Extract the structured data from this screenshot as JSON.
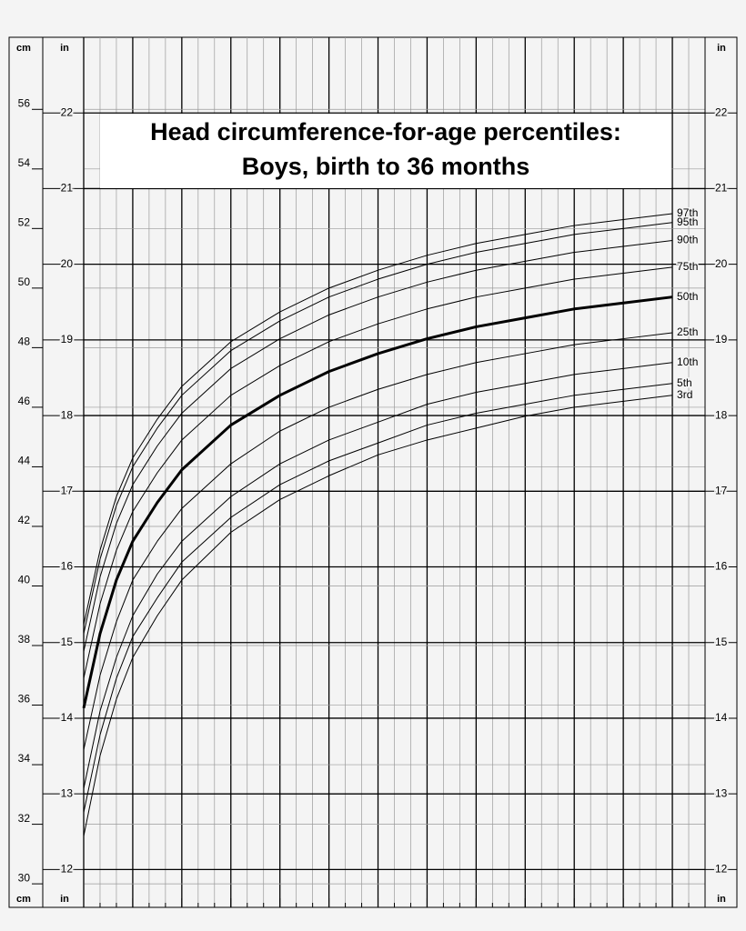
{
  "chart_data": {
    "type": "line",
    "title": "Head circumference-for-age percentiles:",
    "subtitle": "Boys, birth to 36 months",
    "y_label": "cm",
    "y2_label": "in",
    "x": [
      0,
      1,
      2,
      3,
      4.5,
      6,
      9,
      12,
      15,
      18,
      21,
      24,
      27,
      30,
      33,
      36
    ],
    "xlim": [
      0,
      38
    ],
    "xticks": [
      0,
      3,
      6,
      9,
      12,
      15,
      18,
      21,
      24,
      27,
      30,
      33,
      36
    ],
    "xminorticks": [
      1,
      2,
      4,
      5,
      7,
      8,
      10,
      11,
      13,
      14,
      16,
      17,
      19,
      20,
      22,
      23,
      25,
      26,
      28,
      29,
      31,
      32,
      34,
      35,
      37,
      38
    ],
    "ylim": [
      29.21,
      58.42
    ],
    "yticks": [
      30,
      32,
      34,
      36,
      38,
      40,
      42,
      44,
      46,
      48,
      50,
      52,
      54,
      56
    ],
    "y2lim": [
      11.5,
      23
    ],
    "y2ticks": [
      12,
      13,
      14,
      15,
      16,
      17,
      18,
      19,
      20,
      21,
      22
    ],
    "grid": true,
    "series": [
      {
        "name": "97th",
        "color": "#000000",
        "line_width": 1,
        "values": [
          38.7,
          41.2,
          43.0,
          44.3,
          45.6,
          46.7,
          48.2,
          49.2,
          50.0,
          50.6,
          51.1,
          51.5,
          51.8,
          52.1,
          52.3,
          52.5
        ]
      },
      {
        "name": "95th",
        "color": "#000000",
        "line_width": 1,
        "values": [
          38.4,
          40.9,
          42.7,
          44.0,
          45.3,
          46.4,
          47.9,
          48.9,
          49.7,
          50.3,
          50.8,
          51.2,
          51.5,
          51.8,
          52.0,
          52.2
        ]
      },
      {
        "name": "90th",
        "color": "#000000",
        "line_width": 1,
        "values": [
          37.8,
          40.3,
          42.1,
          43.4,
          44.7,
          45.8,
          47.3,
          48.3,
          49.1,
          49.7,
          50.2,
          50.6,
          50.9,
          51.2,
          51.4,
          51.6
        ]
      },
      {
        "name": "75th",
        "color": "#000000",
        "line_width": 1,
        "values": [
          36.9,
          39.4,
          41.2,
          42.5,
          43.8,
          44.9,
          46.4,
          47.4,
          48.2,
          48.8,
          49.3,
          49.7,
          50.0,
          50.3,
          50.5,
          50.7
        ]
      },
      {
        "name": "50th",
        "color": "#000000",
        "line_width": 3,
        "values": [
          35.9,
          38.4,
          40.2,
          41.5,
          42.8,
          43.9,
          45.4,
          46.4,
          47.2,
          47.8,
          48.3,
          48.7,
          49.0,
          49.3,
          49.5,
          49.7
        ]
      },
      {
        "name": "25th",
        "color": "#000000",
        "line_width": 1,
        "values": [
          34.5,
          37.0,
          38.8,
          40.2,
          41.5,
          42.6,
          44.1,
          45.2,
          46.0,
          46.6,
          47.1,
          47.5,
          47.8,
          48.1,
          48.3,
          48.5
        ]
      },
      {
        "name": "10th",
        "color": "#000000",
        "line_width": 1,
        "values": [
          33.2,
          35.8,
          37.6,
          39.0,
          40.4,
          41.5,
          43.0,
          44.1,
          44.9,
          45.5,
          46.1,
          46.5,
          46.8,
          47.1,
          47.3,
          47.5
        ]
      },
      {
        "name": "5th",
        "color": "#000000",
        "line_width": 1,
        "values": [
          32.4,
          35.0,
          36.9,
          38.3,
          39.6,
          40.8,
          42.3,
          43.4,
          44.2,
          44.8,
          45.4,
          45.8,
          46.1,
          46.4,
          46.6,
          46.8
        ]
      },
      {
        "name": "3rd",
        "color": "#000000",
        "line_width": 1,
        "values": [
          31.6,
          34.3,
          36.2,
          37.6,
          39.0,
          40.2,
          41.8,
          42.9,
          43.7,
          44.4,
          44.9,
          45.3,
          45.7,
          46.0,
          46.2,
          46.4
        ]
      }
    ]
  }
}
